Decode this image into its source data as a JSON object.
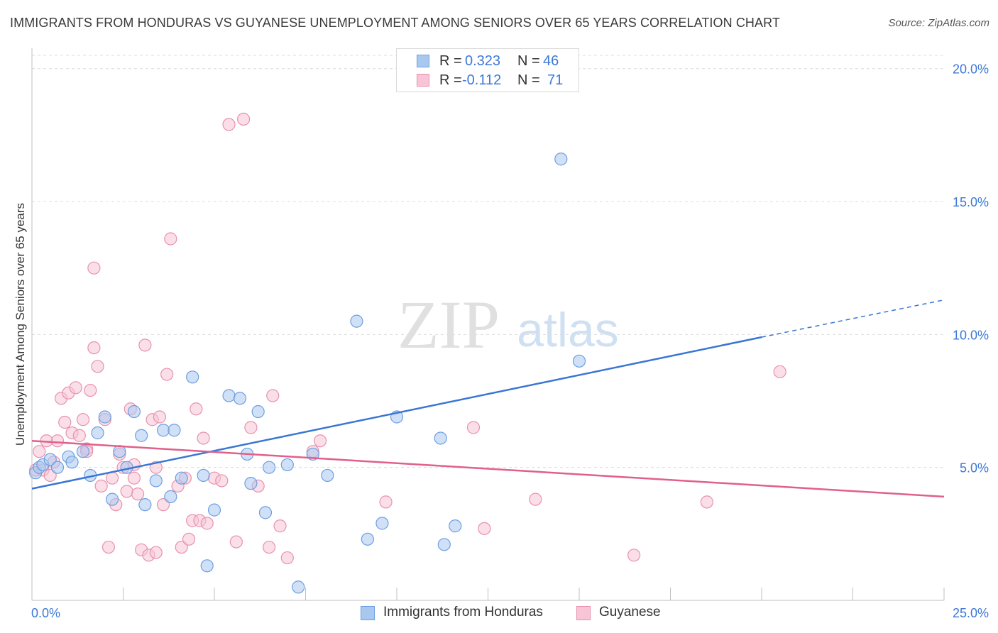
{
  "title": "IMMIGRANTS FROM HONDURAS VS GUYANESE UNEMPLOYMENT AMONG SENIORS OVER 65 YEARS CORRELATION CHART",
  "source": "Source: ZipAtlas.com",
  "watermark": {
    "zip": "ZIP",
    "atlas": "atlas"
  },
  "legend_top": [
    {
      "r_label": "R =",
      "r_value": "0.323",
      "n_label": "N =",
      "n_value": "46",
      "color": "#a9c8f0",
      "border": "#6d9ee0"
    },
    {
      "r_label": "R =",
      "r_value": "-0.112",
      "n_label": "N =",
      "n_value": "71",
      "color": "#f7c5d5",
      "border": "#e891ad"
    }
  ],
  "chart_data": {
    "type": "scatter",
    "title": "IMMIGRANTS FROM HONDURAS VS GUYANESE UNEMPLOYMENT AMONG SENIORS OVER 65 YEARS CORRELATION CHART",
    "xlabel": "",
    "ylabel": "Unemployment Among Seniors over 65 years",
    "xlim": [
      0,
      25
    ],
    "ylim": [
      0,
      20.5
    ],
    "x_ticks": [
      "0.0%",
      "25.0%"
    ],
    "y_ticks": [
      {
        "value": 5,
        "label": "5.0%"
      },
      {
        "value": 10,
        "label": "10.0%"
      },
      {
        "value": 15,
        "label": "15.0%"
      },
      {
        "value": 20,
        "label": "20.0%"
      }
    ],
    "grid": true,
    "legend_position": "bottom",
    "series": [
      {
        "name": "Immigrants from Honduras",
        "color": "#a9c8f0",
        "stroke": "#6d9ee0",
        "line_color": "#3a75d4",
        "trend": {
          "x0": 0.0,
          "y0": 4.2,
          "x1": 20.0,
          "y1": 9.9,
          "dashed_to_x": 25.0,
          "dashed_to_y": 11.3
        },
        "points": [
          [
            0.1,
            4.8
          ],
          [
            0.2,
            5.0
          ],
          [
            0.3,
            5.1
          ],
          [
            0.5,
            5.3
          ],
          [
            0.7,
            5.0
          ],
          [
            1.0,
            5.4
          ],
          [
            1.1,
            5.2
          ],
          [
            1.4,
            5.6
          ],
          [
            1.6,
            4.7
          ],
          [
            1.8,
            6.3
          ],
          [
            2.0,
            6.9
          ],
          [
            2.2,
            3.8
          ],
          [
            2.4,
            5.6
          ],
          [
            2.6,
            5.0
          ],
          [
            2.8,
            7.1
          ],
          [
            3.0,
            6.2
          ],
          [
            3.1,
            3.6
          ],
          [
            3.4,
            4.5
          ],
          [
            3.6,
            6.4
          ],
          [
            3.8,
            3.9
          ],
          [
            3.9,
            6.4
          ],
          [
            4.1,
            4.6
          ],
          [
            4.4,
            8.4
          ],
          [
            4.7,
            4.7
          ],
          [
            5.0,
            3.4
          ],
          [
            5.4,
            7.7
          ],
          [
            5.7,
            7.6
          ],
          [
            5.9,
            5.5
          ],
          [
            6.0,
            4.4
          ],
          [
            6.2,
            7.1
          ],
          [
            6.4,
            3.3
          ],
          [
            6.5,
            5.0
          ],
          [
            7.0,
            5.1
          ],
          [
            7.3,
            0.5
          ],
          [
            7.7,
            5.5
          ],
          [
            8.1,
            4.7
          ],
          [
            8.9,
            10.5
          ],
          [
            9.2,
            2.3
          ],
          [
            9.6,
            2.9
          ],
          [
            10.0,
            6.9
          ],
          [
            11.2,
            6.1
          ],
          [
            11.3,
            2.1
          ],
          [
            11.6,
            2.8
          ],
          [
            14.5,
            16.6
          ],
          [
            15.0,
            9.0
          ],
          [
            4.8,
            1.3
          ]
        ]
      },
      {
        "name": "Guyanese",
        "color": "#f7c5d5",
        "stroke": "#e891ad",
        "line_color": "#e0608a",
        "trend": {
          "x0": 0.0,
          "y0": 6.0,
          "x1": 25.0,
          "y1": 3.9
        },
        "points": [
          [
            0.1,
            4.9
          ],
          [
            0.2,
            5.6
          ],
          [
            0.3,
            4.9
          ],
          [
            0.4,
            6.0
          ],
          [
            0.5,
            4.7
          ],
          [
            0.7,
            6.0
          ],
          [
            0.8,
            7.6
          ],
          [
            0.9,
            6.7
          ],
          [
            1.0,
            7.8
          ],
          [
            1.1,
            6.3
          ],
          [
            1.2,
            8.0
          ],
          [
            1.3,
            6.2
          ],
          [
            1.4,
            6.8
          ],
          [
            1.5,
            5.7
          ],
          [
            1.6,
            7.9
          ],
          [
            1.7,
            9.5
          ],
          [
            1.7,
            12.5
          ],
          [
            1.8,
            8.8
          ],
          [
            1.9,
            4.3
          ],
          [
            2.0,
            6.8
          ],
          [
            2.1,
            2.0
          ],
          [
            2.2,
            4.6
          ],
          [
            2.3,
            3.6
          ],
          [
            2.4,
            5.5
          ],
          [
            2.5,
            5.0
          ],
          [
            2.6,
            4.1
          ],
          [
            2.7,
            7.2
          ],
          [
            2.8,
            5.1
          ],
          [
            2.9,
            4.0
          ],
          [
            3.0,
            1.9
          ],
          [
            3.1,
            9.6
          ],
          [
            3.2,
            1.7
          ],
          [
            3.3,
            6.8
          ],
          [
            3.4,
            1.8
          ],
          [
            3.5,
            6.9
          ],
          [
            3.6,
            3.6
          ],
          [
            3.7,
            8.5
          ],
          [
            3.8,
            13.6
          ],
          [
            4.0,
            4.3
          ],
          [
            4.1,
            2.0
          ],
          [
            4.2,
            4.6
          ],
          [
            4.3,
            2.3
          ],
          [
            4.4,
            3.0
          ],
          [
            4.5,
            7.2
          ],
          [
            4.6,
            3.0
          ],
          [
            4.7,
            6.1
          ],
          [
            4.8,
            2.9
          ],
          [
            5.0,
            4.6
          ],
          [
            5.2,
            4.5
          ],
          [
            5.4,
            17.9
          ],
          [
            5.6,
            2.2
          ],
          [
            5.8,
            18.1
          ],
          [
            6.0,
            6.5
          ],
          [
            6.2,
            4.3
          ],
          [
            6.5,
            2.0
          ],
          [
            6.6,
            7.7
          ],
          [
            6.8,
            2.8
          ],
          [
            7.0,
            1.6
          ],
          [
            7.7,
            5.6
          ],
          [
            7.9,
            6.0
          ],
          [
            9.7,
            3.7
          ],
          [
            12.1,
            6.5
          ],
          [
            12.4,
            2.7
          ],
          [
            13.8,
            3.8
          ],
          [
            16.5,
            1.7
          ],
          [
            18.5,
            3.7
          ],
          [
            20.5,
            8.6
          ],
          [
            0.6,
            5.2
          ],
          [
            1.5,
            5.6
          ],
          [
            2.8,
            4.6
          ],
          [
            3.4,
            5.0
          ]
        ]
      }
    ]
  }
}
